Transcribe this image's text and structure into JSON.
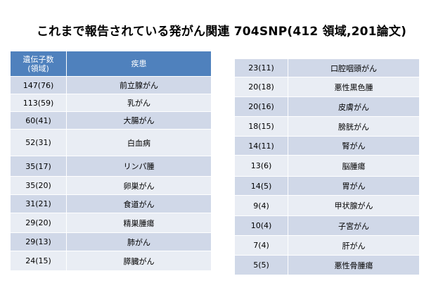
{
  "title": "これまで報告されている発がん関連 704SNP(412 領域,201論文)",
  "left_table": {
    "header": {
      "count_line1": "遺伝子数",
      "count_line2": "(領域)",
      "disease": "疾患"
    },
    "rows": [
      {
        "count": "147(76)",
        "disease": "前立腺がん"
      },
      {
        "count": "113(59)",
        "disease": "乳がん"
      },
      {
        "count": "60(41)",
        "disease": "大腸がん"
      },
      {
        "count": "52(31)",
        "disease": "白血病"
      },
      {
        "count": "35(17)",
        "disease": "リンパ腫"
      },
      {
        "count": "35(20)",
        "disease": "卵巣がん"
      },
      {
        "count": "31(21)",
        "disease": "食道がん"
      },
      {
        "count": "29(20)",
        "disease": "精巣腫瘍"
      },
      {
        "count": "29(13)",
        "disease": "肺がん"
      },
      {
        "count": "24(15)",
        "disease": "膵臓がん"
      }
    ]
  },
  "right_table": {
    "rows": [
      {
        "count": "23(11)",
        "disease": "口腔咽頭がん"
      },
      {
        "count": "20(18)",
        "disease": "悪性黒色腫"
      },
      {
        "count": "20(16)",
        "disease": "皮膚がん"
      },
      {
        "count": "18(15)",
        "disease": "膀胱がん"
      },
      {
        "count": "14(11)",
        "disease": "腎がん"
      },
      {
        "count": "13(6)",
        "disease": "脳腫瘍"
      },
      {
        "count": "14(5)",
        "disease": "胃がん"
      },
      {
        "count": "9(4)",
        "disease": "甲状腺がん"
      },
      {
        "count": "10(4)",
        "disease": "子宮がん"
      },
      {
        "count": "7(4)",
        "disease": "肝がん"
      },
      {
        "count": "5(5)",
        "disease": "悪性骨腫瘍"
      }
    ]
  },
  "colors": {
    "header_bg": "#4f81bd",
    "row_odd": "#d0d8e8",
    "row_even": "#e9edf4"
  }
}
